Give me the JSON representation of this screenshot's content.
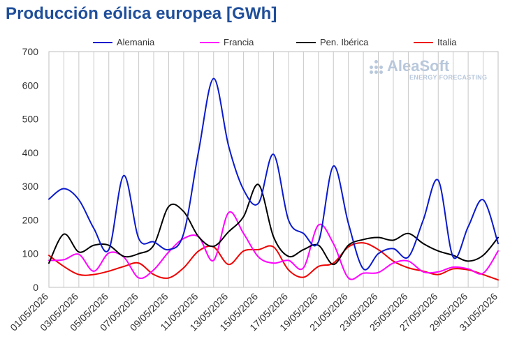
{
  "title": "Producción eólica europea [GWh]",
  "watermark": {
    "name": "AleaSoft",
    "sub": "ENERGY FORECASTING"
  },
  "chart_data": {
    "type": "line",
    "title": "Producción eólica europea [GWh]",
    "xlabel": "",
    "ylabel": "",
    "ylim": [
      0,
      700
    ],
    "yticks": [
      0,
      100,
      200,
      300,
      400,
      500,
      600,
      700
    ],
    "grid": "vertical",
    "legend_position": "top",
    "x": [
      "01/05/2026",
      "02/05/2026",
      "03/05/2026",
      "04/05/2026",
      "05/05/2026",
      "06/05/2026",
      "07/05/2026",
      "08/05/2026",
      "09/05/2026",
      "10/05/2026",
      "11/05/2026",
      "12/05/2026",
      "13/05/2026",
      "14/05/2026",
      "15/05/2026",
      "16/05/2026",
      "17/05/2026",
      "18/05/2026",
      "19/05/2026",
      "20/05/2026",
      "21/05/2026",
      "22/05/2026",
      "23/05/2026",
      "24/05/2026",
      "25/05/2026",
      "26/05/2026",
      "27/05/2026",
      "28/05/2026",
      "29/05/2026",
      "30/05/2026",
      "31/05/2026"
    ],
    "xtick_labels": [
      "01/05/2026",
      "03/05/2026",
      "05/05/2026",
      "07/05/2026",
      "09/05/2026",
      "11/05/2026",
      "13/05/2026",
      "15/05/2026",
      "17/05/2026",
      "19/05/2026",
      "21/05/2026",
      "23/05/2026",
      "25/05/2026",
      "27/05/2026",
      "29/05/2026",
      "31/05/2026"
    ],
    "series": [
      {
        "name": "Alemania",
        "color": "#0a1acc",
        "values": [
          262,
          293,
          260,
          175,
          112,
          332,
          145,
          135,
          112,
          160,
          405,
          620,
          420,
          290,
          250,
          395,
          200,
          160,
          135,
          360,
          190,
          55,
          100,
          115,
          90,
          200,
          318,
          90,
          180,
          260,
          130
        ]
      },
      {
        "name": "Francia",
        "color": "#ff00ff",
        "values": [
          80,
          82,
          98,
          48,
          102,
          90,
          28,
          52,
          105,
          145,
          150,
          80,
          222,
          160,
          90,
          72,
          80,
          58,
          185,
          130,
          28,
          42,
          44,
          72,
          78,
          46,
          46,
          60,
          55,
          42,
          108
        ]
      },
      {
        "name": "Pen. Ibérica",
        "color": "#000000",
        "values": [
          72,
          158,
          105,
          125,
          125,
          92,
          100,
          125,
          240,
          225,
          150,
          122,
          165,
          210,
          305,
          150,
          92,
          112,
          125,
          68,
          125,
          142,
          148,
          140,
          160,
          130,
          108,
          95,
          78,
          95,
          148
        ]
      },
      {
        "name": "Italia",
        "color": "#ee0000",
        "values": [
          95,
          62,
          38,
          38,
          48,
          62,
          72,
          38,
          28,
          58,
          108,
          120,
          68,
          108,
          112,
          120,
          52,
          30,
          62,
          72,
          120,
          132,
          112,
          78,
          58,
          48,
          38,
          55,
          52,
          38,
          22
        ]
      }
    ]
  }
}
